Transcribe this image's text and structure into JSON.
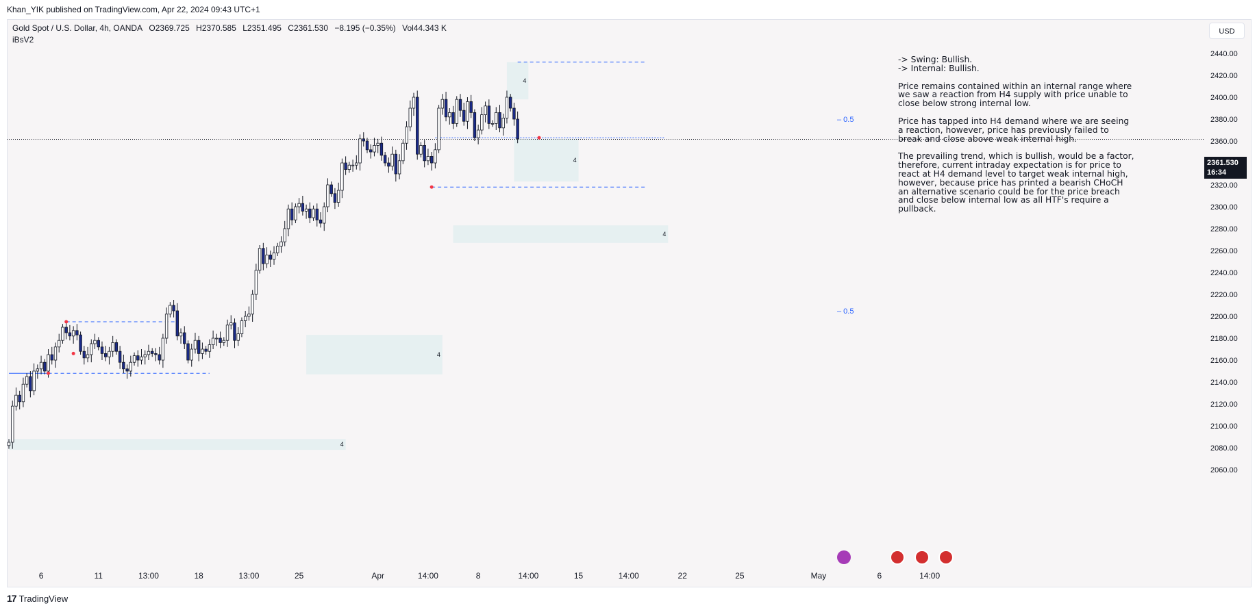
{
  "header": {
    "publisher": "Khan_YIK published on TradingView.com, Apr 22, 2024 09:43 UTC+1"
  },
  "symbol": {
    "name": "Gold Spot / U.S. Dollar, 4h, OANDA",
    "open": "O2369.725",
    "high": "H2370.585",
    "low": "L2351.495",
    "close": "C2361.530",
    "change": "−8.195 (−0.35%)",
    "volume": "Vol44.343 K",
    "indicator": "iBsV2"
  },
  "currency_button": "USD",
  "current_price": {
    "value": "2361.530",
    "countdown": "16:34"
  },
  "notes": {
    "swing": "-> Swing:  Bullish.",
    "internal": "-> Internal:  Bullish.",
    "p1": "Price remains contained within an internal range where we saw a reaction from H4 supply with price unable to close below strong internal low.",
    "p2": "Price has tapped into H4 demand where we are seeing a reaction, however, price has previously failed to break and close above weak internal high.",
    "p3": "The prevailing trend, which is bullish, would be  a factor, therefore, current intraday expectation is for price to react at H4 demand level to target weak internal high, however, because price has printed a bearish CHoCH an alternative scenario could be for the price breach and close below internal low as all HTF's require a pullback."
  },
  "brand": "TradingView",
  "colors": {
    "bull": "#ffffff",
    "bear": "#1a2a8a",
    "wick": "#131722",
    "zone": "#e3eff0",
    "level": "#2962ff",
    "pivot": "#f23645"
  },
  "chart_data": {
    "type": "candlestick",
    "timeframe": "4h",
    "ylim": [
      2050,
      2450
    ],
    "y_ticks": [
      2060,
      2080,
      2100,
      2120,
      2140,
      2160,
      2180,
      2200,
      2220,
      2240,
      2260,
      2280,
      2300,
      2320,
      2340,
      2360,
      2380,
      2400,
      2420,
      2440
    ],
    "x_ticks": [
      {
        "label": "6",
        "bar": 9
      },
      {
        "label": "11",
        "bar": 25
      },
      {
        "label": "13:00",
        "bar": 39
      },
      {
        "label": "18",
        "bar": 53
      },
      {
        "label": "13:00",
        "bar": 67
      },
      {
        "label": "25",
        "bar": 81
      },
      {
        "label": "Apr",
        "bar": 103
      },
      {
        "label": "14:00",
        "bar": 117
      },
      {
        "label": "8",
        "bar": 131
      },
      {
        "label": "14:00",
        "bar": 145
      },
      {
        "label": "15",
        "bar": 159
      },
      {
        "label": "14:00",
        "bar": 173
      },
      {
        "label": "22",
        "bar": 188
      },
      {
        "label": "25",
        "bar": 204
      },
      {
        "label": "May",
        "bar": 226
      },
      {
        "label": "6",
        "bar": 243
      },
      {
        "label": "14:00",
        "bar": 257
      }
    ],
    "last_price": 2361.53,
    "closes": [
      2085,
      2118,
      2128,
      2122,
      2138,
      2145,
      2132,
      2150,
      2152,
      2158,
      2150,
      2165,
      2160,
      2172,
      2178,
      2190,
      2185,
      2182,
      2187,
      2183,
      2168,
      2162,
      2165,
      2175,
      2178,
      2172,
      2166,
      2163,
      2168,
      2176,
      2168,
      2158,
      2152,
      2150,
      2158,
      2164,
      2160,
      2163,
      2165,
      2168,
      2166,
      2165,
      2160,
      2180,
      2202,
      2210,
      2205,
      2182,
      2185,
      2175,
      2160,
      2170,
      2178,
      2166,
      2170,
      2168,
      2174,
      2180,
      2180,
      2176,
      2178,
      2192,
      2194,
      2178,
      2184,
      2196,
      2200,
      2202,
      2220,
      2242,
      2262,
      2248,
      2256,
      2252,
      2258,
      2264,
      2268,
      2280,
      2298,
      2288,
      2300,
      2303,
      2296,
      2298,
      2290,
      2298,
      2288,
      2285,
      2300,
      2320,
      2312,
      2304,
      2315,
      2340,
      2334,
      2338,
      2338,
      2340,
      2362,
      2360,
      2352,
      2350,
      2356,
      2358,
      2347,
      2340,
      2337,
      2348,
      2330,
      2342,
      2358,
      2373,
      2390,
      2400,
      2348,
      2356,
      2342,
      2346,
      2340,
      2352,
      2390,
      2398,
      2382,
      2386,
      2376,
      2398,
      2388,
      2378,
      2396,
      2386,
      2363,
      2370,
      2384,
      2392,
      2376,
      2376,
      2386,
      2372,
      2381,
      2400,
      2390,
      2380,
      2362
    ],
    "bars": [
      {
        "o": 2082,
        "h": 2092,
        "l": 2080,
        "c": 2085
      },
      {
        "o": 2086,
        "h": 2124,
        "l": 2084,
        "c": 2118
      },
      {
        "o": 2118,
        "h": 2130,
        "l": 2112,
        "c": 2128
      },
      {
        "o": 2128,
        "h": 2134,
        "l": 2118,
        "c": 2122
      }
    ],
    "zones": [
      {
        "from_bar": 0,
        "to_bar": 94,
        "y1": 2078,
        "y2": 2088,
        "label": "4"
      },
      {
        "from_bar": 83,
        "to_bar": 121,
        "y1": 2147,
        "y2": 2183,
        "label": "4"
      },
      {
        "from_bar": 124,
        "to_bar": 184,
        "y1": 2267,
        "y2": 2283,
        "label": "4"
      },
      {
        "from_bar": 139,
        "to_bar": 145,
        "y1": 2398,
        "y2": 2432,
        "label": "4"
      },
      {
        "from_bar": 141,
        "to_bar": 159,
        "y1": 2323,
        "y2": 2362,
        "label": "4"
      }
    ],
    "levels": [
      {
        "from_bar": 0,
        "to_bar": 11,
        "y": 2148,
        "style": "solid"
      },
      {
        "from_bar": 16,
        "to_bar": 47,
        "y": 2195,
        "style": "dashed"
      },
      {
        "from_bar": 11,
        "to_bar": 56,
        "y": 2148,
        "style": "dashed"
      },
      {
        "from_bar": 118,
        "to_bar": 178,
        "y": 2318,
        "style": "dashed"
      },
      {
        "from_bar": 142,
        "to_bar": 178,
        "y": 2432,
        "style": "dashed"
      },
      {
        "from_bar": 119,
        "to_bar": 183,
        "y": 2363,
        "style": "dotted"
      }
    ],
    "fib_labels": [
      {
        "label": "0.5",
        "y": 2380
      },
      {
        "label": "0.5",
        "y": 2205
      }
    ]
  }
}
